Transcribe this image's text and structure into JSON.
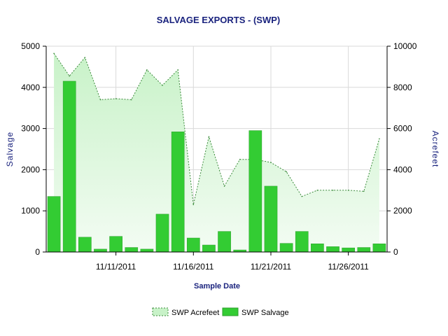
{
  "chart_data": {
    "type": "bar",
    "title": "SALVAGE EXPORTS -   (SWP)",
    "xlabel": "Sample Date",
    "ylabel": "Salvage",
    "y2label": "Acrefeet",
    "ylim": [
      0,
      5000
    ],
    "y2lim": [
      0,
      10000
    ],
    "y_ticks": [
      "0",
      "1000",
      "2000",
      "3000",
      "4000",
      "5000"
    ],
    "y2_ticks": [
      "0",
      "2000",
      "4000",
      "6000",
      "8000",
      "10000"
    ],
    "x_ticks": [
      "11/11/2011",
      "11/16/2011",
      "11/21/2011",
      "11/26/2011"
    ],
    "x_tick_positions": [
      4,
      9,
      14,
      19
    ],
    "grid": true,
    "legend_position": "bottom",
    "colors": {
      "bar": "#33cc33",
      "bar_stroke": "#2e9e2e",
      "area_top": "#c8f2c8",
      "area_bottom": "#f3fcf3",
      "area_line": "#3a8a3a"
    },
    "x_count": 22,
    "series": [
      {
        "name": "SWP Acrefeet",
        "type": "area",
        "axis": "right",
        "values": [
          9650,
          8550,
          9450,
          7400,
          7450,
          7400,
          8850,
          8100,
          8850,
          2300,
          5600,
          3200,
          4500,
          4500,
          4350,
          3900,
          2700,
          3000,
          3000,
          3000,
          2950,
          5500
        ]
      },
      {
        "name": "SWP Salvage",
        "type": "bar",
        "axis": "left",
        "values": [
          1350,
          4150,
          360,
          70,
          380,
          110,
          70,
          920,
          2920,
          340,
          170,
          500,
          50,
          2950,
          1600,
          210,
          500,
          200,
          130,
          100,
          110,
          200
        ]
      }
    ]
  }
}
